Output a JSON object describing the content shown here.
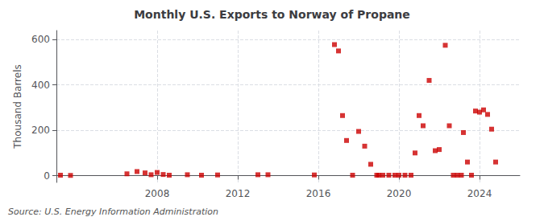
{
  "chart_data": {
    "type": "scatter",
    "title": "Monthly U.S. Exports to Norway of Propane",
    "ylabel": "Thousand Barrels",
    "annotation": "Source: U.S. Energy Information Administration",
    "color": "#cc0000",
    "marker": "square",
    "grid": true,
    "xlim": [
      2003,
      2026
    ],
    "xticks": [
      2008,
      2012,
      2016,
      2020,
      2024
    ],
    "ylim": [
      -30,
      640
    ],
    "yticks": [
      0,
      200,
      400,
      600
    ],
    "x": [
      2003.2,
      2003.7,
      2006.5,
      2007.0,
      2007.4,
      2007.7,
      2008.0,
      2008.3,
      2008.6,
      2009.5,
      2010.2,
      2011.0,
      2013.0,
      2013.5,
      2015.8,
      2016.8,
      2017.0,
      2017.2,
      2017.4,
      2017.7,
      2018.0,
      2018.3,
      2018.6,
      2018.9,
      2019.0,
      2019.2,
      2019.5,
      2019.8,
      2020.0,
      2020.3,
      2020.6,
      2020.8,
      2021.0,
      2021.2,
      2021.5,
      2021.8,
      2022.0,
      2022.3,
      2022.5,
      2022.7,
      2022.9,
      2023.1,
      2023.2,
      2023.4,
      2023.6,
      2023.8,
      2024.0,
      2024.2,
      2024.4,
      2024.6,
      2024.8
    ],
    "values": [
      2,
      1,
      8,
      18,
      12,
      4,
      14,
      5,
      2,
      4,
      2,
      3,
      4,
      4,
      3,
      578,
      550,
      265,
      155,
      2,
      195,
      130,
      50,
      2,
      2,
      2,
      2,
      2,
      2,
      2,
      2,
      100,
      265,
      220,
      420,
      110,
      115,
      575,
      220,
      2,
      2,
      2,
      190,
      60,
      2,
      285,
      280,
      290,
      270,
      205,
      60
    ]
  }
}
